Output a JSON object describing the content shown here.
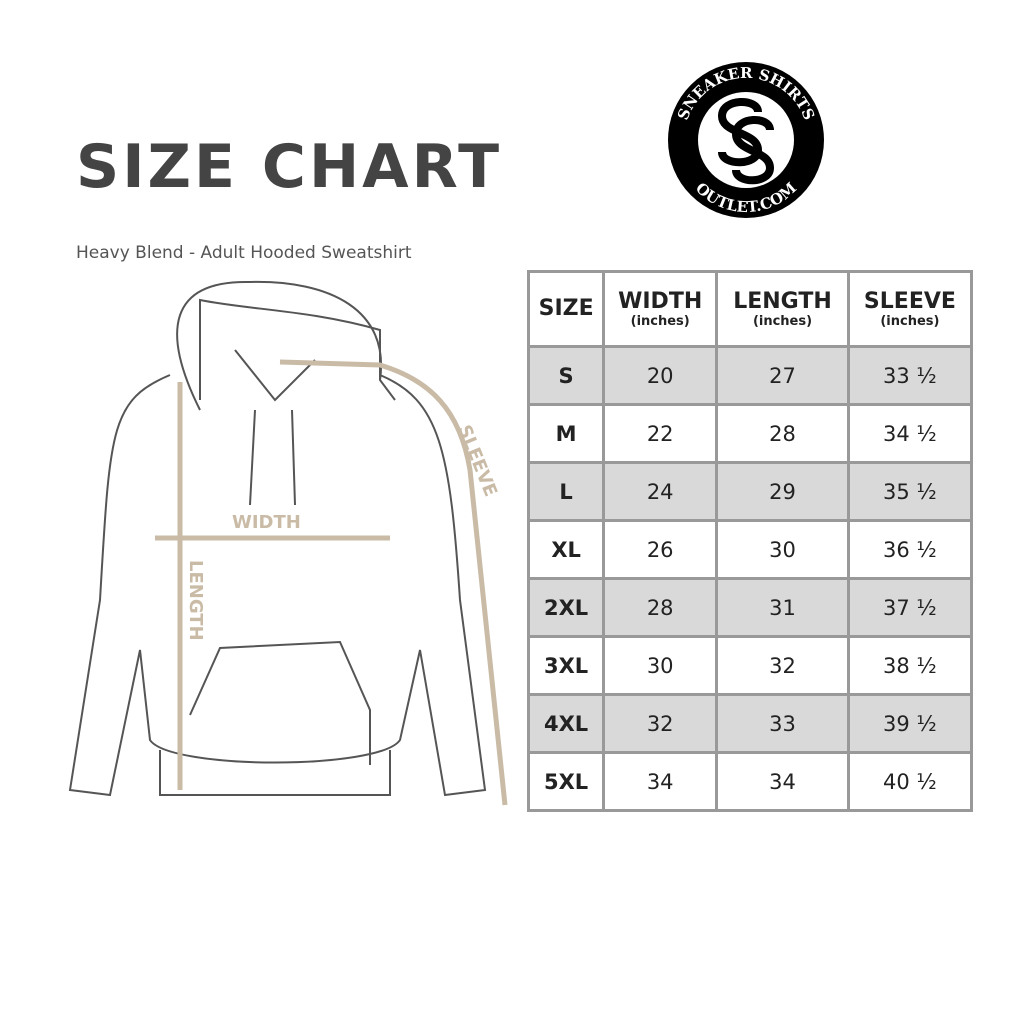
{
  "title": "SIZE CHART",
  "subtitle": "Heavy Blend - Adult Hooded Sweatshirt",
  "logo": {
    "top_text": "SNEAKER SHIRTS",
    "bottom_text": "OUTLET.COM",
    "monogram": "SS"
  },
  "diagram": {
    "width_label": "WIDTH",
    "length_label": "LENGTH",
    "sleeve_label": "SLEEVE",
    "accent_color": "#c9bba6"
  },
  "table": {
    "headers": [
      {
        "label": "SIZE",
        "unit": ""
      },
      {
        "label": "WIDTH",
        "unit": "(inches)"
      },
      {
        "label": "LENGTH",
        "unit": "(inches)"
      },
      {
        "label": "SLEEVE",
        "unit": "(inches)"
      }
    ],
    "rows": [
      [
        "S",
        "20",
        "27",
        "33 ½"
      ],
      [
        "M",
        "22",
        "28",
        "34 ½"
      ],
      [
        "L",
        "24",
        "29",
        "35 ½"
      ],
      [
        "XL",
        "26",
        "30",
        "36 ½"
      ],
      [
        "2XL",
        "28",
        "31",
        "37 ½"
      ],
      [
        "3XL",
        "30",
        "32",
        "38 ½"
      ],
      [
        "4XL",
        "32",
        "33",
        "39 ½"
      ],
      [
        "5XL",
        "34",
        "34",
        "40 ½"
      ]
    ]
  }
}
